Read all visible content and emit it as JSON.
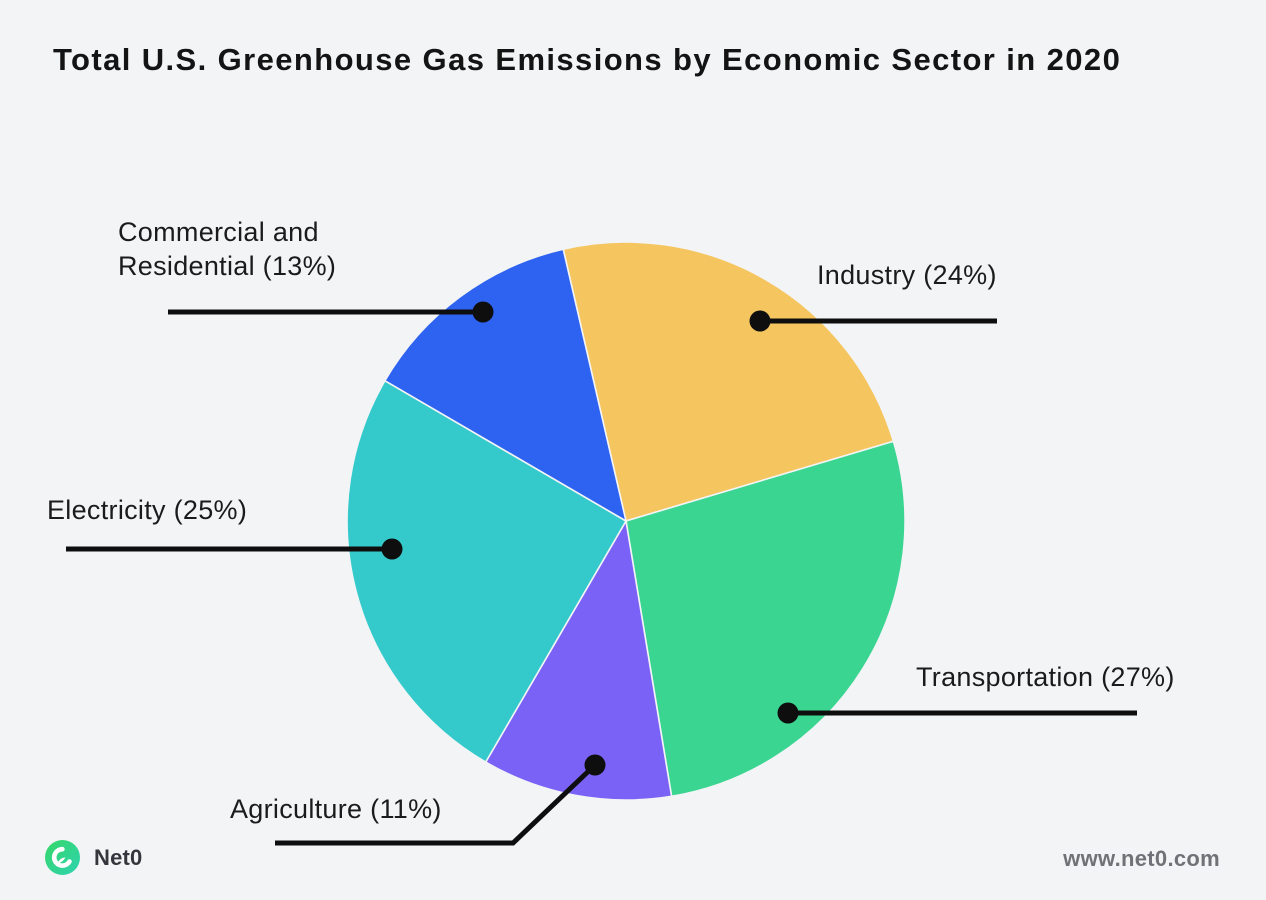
{
  "title": "Total U.S. Greenhouse Gas Emissions by Economic Sector in 2020",
  "chart_data": {
    "type": "pie",
    "title": "Total U.S. Greenhouse Gas Emissions by Economic Sector in 2020",
    "unit": "%",
    "direction": "clockwise",
    "start_angle_deg_from_top": -13,
    "legend_position": "callout-labels",
    "slices": [
      {
        "label": "Industry",
        "value": 24,
        "color": "#f5c55f",
        "display": "Industry (24%)"
      },
      {
        "label": "Transportation",
        "value": 27,
        "color": "#3bd592",
        "display": "Transportation (27%)"
      },
      {
        "label": "Agriculture",
        "value": 11,
        "color": "#7b62f7",
        "display": "Agriculture (11%)"
      },
      {
        "label": "Electricity",
        "value": 25,
        "color": "#34cacb",
        "display": "Electricity (25%)"
      },
      {
        "label": "Commercial and Residential",
        "value": 13,
        "color": "#2e62f0",
        "display": "Commercial and Residential (13%)"
      }
    ]
  },
  "footer": {
    "brand": "Net0",
    "logo_icon": "net0-leaf-logo",
    "website": "www.net0.com"
  },
  "colors": {
    "background": "#f3f4f6",
    "title_text": "#141414",
    "label_text": "#1b1b1b",
    "callout": "#0e0e0e",
    "footer_text": "#6f7377",
    "brand_text": "#33373d",
    "logo_gradient_start": "#35d768",
    "logo_gradient_end": "#2fd3b0"
  }
}
